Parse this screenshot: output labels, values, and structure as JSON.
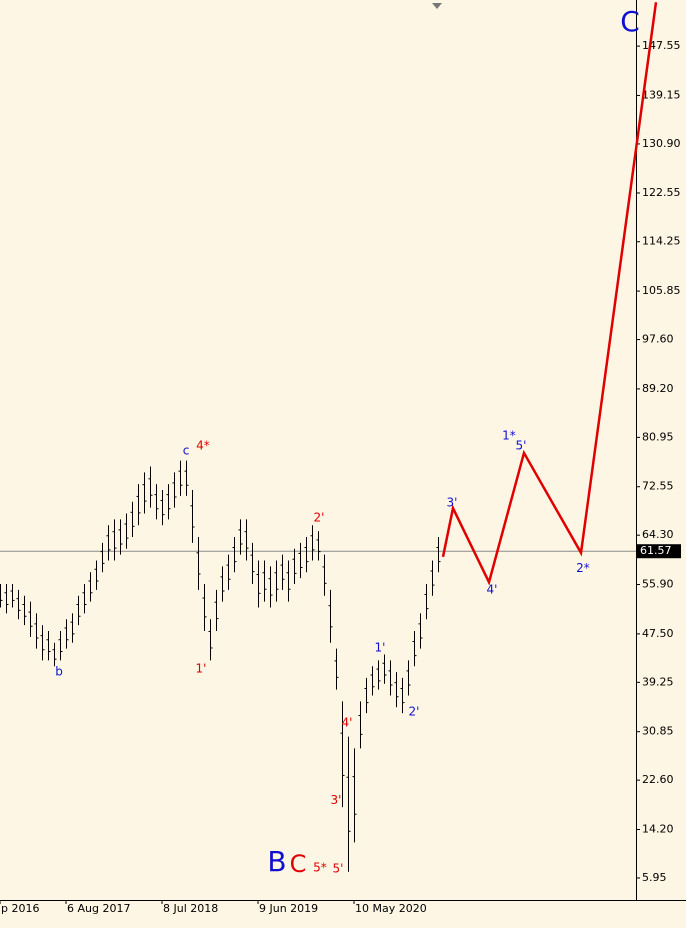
{
  "chart_data": {
    "type": "range_bar",
    "color": "#000000",
    "xlim": [
      0,
      318
    ],
    "ylim": [
      2.2,
      155.4
    ],
    "xticks": [
      {
        "value": 0,
        "label": "p 2016"
      },
      {
        "value": 33,
        "label": "6 Aug 2017"
      },
      {
        "value": 81,
        "label": "8 Jul 2018"
      },
      {
        "value": 129,
        "label": "9 Jun 2019"
      },
      {
        "value": 177,
        "label": "10 May 2020"
      }
    ],
    "yticks": [
      147.55,
      139.15,
      {
        "value": 130.9,
        "label": "130.90"
      },
      122.55,
      114.25,
      105.85,
      {
        "value": 97.6,
        "label": "97.60"
      },
      {
        "value": 89.2,
        "label": "89.20"
      },
      80.95,
      72.55,
      {
        "value": 64.3,
        "label": "64.30"
      },
      {
        "value": 55.9,
        "label": "55.90"
      },
      {
        "value": 47.5,
        "label": "47.50"
      },
      39.25,
      30.85,
      {
        "value": 22.6,
        "label": "22.60"
      },
      {
        "value": 14.2,
        "label": "14.20"
      },
      5.95
    ],
    "x": [
      0,
      3,
      6,
      9,
      12,
      15,
      18,
      21,
      24,
      27,
      30,
      33,
      36,
      39,
      42,
      45,
      48,
      51,
      54,
      57,
      60,
      63,
      66,
      69,
      72,
      75,
      78,
      81,
      84,
      87,
      90,
      93,
      96,
      99,
      102,
      105,
      108,
      111,
      114,
      117,
      120,
      123,
      126,
      129,
      132,
      135,
      138,
      141,
      144,
      147,
      150,
      153,
      156,
      159,
      162,
      165,
      168,
      171,
      174,
      177,
      180,
      183,
      186,
      189,
      192,
      195,
      198,
      201,
      204,
      207,
      210,
      213,
      216,
      219
    ],
    "high": [
      56,
      56,
      56,
      55,
      54,
      53,
      51,
      49,
      48,
      46,
      48,
      50,
      51,
      54,
      56,
      58,
      60,
      63,
      66,
      67,
      67,
      68,
      70,
      73,
      75,
      76,
      73,
      72,
      73,
      75,
      77,
      77,
      72,
      64,
      56,
      50,
      55,
      59,
      61,
      64,
      67,
      67,
      63,
      60,
      60,
      59,
      60,
      61,
      60,
      62,
      63,
      64,
      66,
      65,
      61,
      55,
      45,
      36,
      30,
      28,
      36,
      40,
      42,
      43,
      44,
      43,
      41,
      40,
      43,
      48,
      51,
      56,
      60,
      64
    ],
    "low": [
      52,
      51,
      52,
      50,
      49,
      47,
      45,
      43,
      43,
      42,
      43,
      45,
      46,
      49,
      51,
      53,
      55,
      58,
      60,
      60,
      61,
      62,
      64,
      66,
      68,
      69,
      67,
      66,
      67,
      69,
      71,
      71,
      63,
      55,
      48,
      43,
      48,
      53,
      55,
      58,
      61,
      60,
      56,
      52,
      53,
      52,
      53,
      55,
      53,
      56,
      57,
      58,
      60,
      60,
      54,
      46,
      38,
      18,
      7,
      12,
      28,
      34,
      37,
      38,
      39,
      37,
      35,
      34,
      37,
      42,
      45,
      50,
      54,
      58
    ],
    "price_line": {
      "value": 61.57,
      "color": "#8c8c8c"
    },
    "projection": {
      "color": "#e00000",
      "x": [
        221.5,
        226.5,
        244.5,
        262,
        290.5,
        328
      ],
      "y": [
        60.6,
        68.9,
        56.3,
        78.3,
        61.3,
        155
      ]
    },
    "annotations": [
      {
        "text": "b",
        "x": 29.5,
        "y": 41.0,
        "color": "#1010d0"
      },
      {
        "text": "c",
        "x": 93,
        "y": 78.6,
        "color": "#1010d0"
      },
      {
        "text": "4*",
        "x": 101.5,
        "y": 79.5,
        "color": "#e00000"
      },
      {
        "text": "1'",
        "x": 100.5,
        "y": 41.5,
        "color": "#e00000"
      },
      {
        "text": "2'",
        "x": 159.5,
        "y": 67.2,
        "color": "#e00000"
      },
      {
        "text": "4'",
        "x": 173.5,
        "y": 32.3,
        "color": "#e00000"
      },
      {
        "text": "3'",
        "x": 168,
        "y": 19.1,
        "color": "#e00000"
      },
      {
        "text": "5*",
        "x": 160,
        "y": 7.65,
        "color": "#e00000"
      },
      {
        "text": "5'",
        "x": 169,
        "y": 7.5,
        "color": "#e00000"
      },
      {
        "text": "B",
        "x": 138.5,
        "y": 8.5,
        "color": "#1010d0",
        "size": "large"
      },
      {
        "text": "C",
        "x": 149,
        "y": 8.2,
        "color": "#e00000",
        "size": "medium"
      },
      {
        "text": "1'",
        "x": 190,
        "y": 45.1,
        "color": "#1010d0"
      },
      {
        "text": "2'",
        "x": 207,
        "y": 34.2,
        "color": "#1010d0"
      },
      {
        "text": "3'",
        "x": 226,
        "y": 69.8,
        "color": "#1010d0"
      },
      {
        "text": "4'",
        "x": 246,
        "y": 55.0,
        "color": "#1010d0"
      },
      {
        "text": "1*",
        "x": 254.5,
        "y": 81.2,
        "color": "#1010d0"
      },
      {
        "text": "5'",
        "x": 260.5,
        "y": 79.5,
        "color": "#1010d0"
      },
      {
        "text": "2*",
        "x": 291.5,
        "y": 58.6,
        "color": "#1010d0"
      },
      {
        "text": "C",
        "x": 315,
        "y": 151.5,
        "color": "#1010d0",
        "size": "large"
      }
    ]
  }
}
